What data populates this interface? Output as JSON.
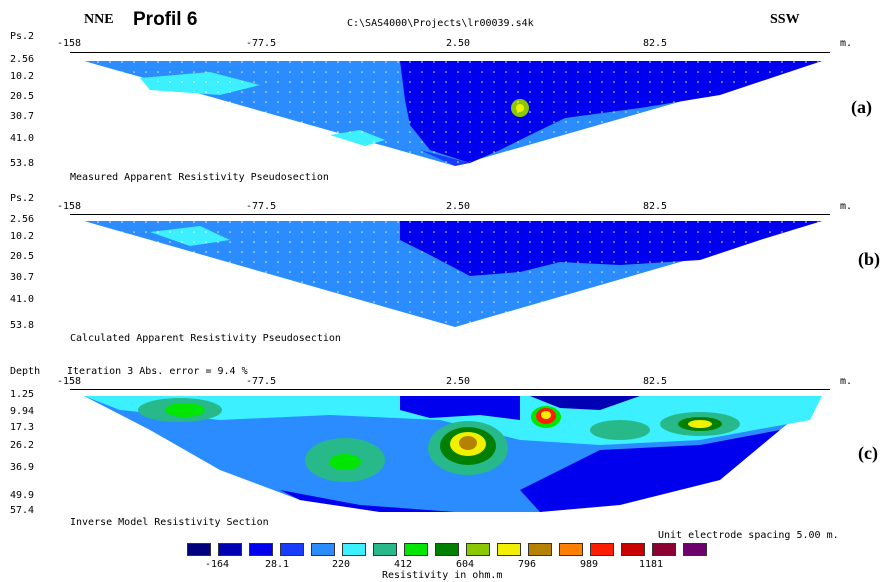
{
  "header": {
    "left_direction": "NNE",
    "title": "Profil 6",
    "file_path": "C:\\SAS4000\\Projects\\lr00039.s4k",
    "right_direction": "SSW"
  },
  "x_axis": {
    "ticks": [
      "-158",
      "-77.5",
      "2.50",
      "82.5"
    ],
    "unit": "m."
  },
  "panels": [
    {
      "y_label": "Ps.2",
      "y_ticks": [
        "2.56",
        "10.2",
        "20.5",
        "30.7",
        "41.0",
        "53.8"
      ],
      "caption": "Measured Apparent Resistivity Pseudosection",
      "tag": "(a)"
    },
    {
      "y_label": "Ps.2",
      "y_ticks": [
        "2.56",
        "10.2",
        "20.5",
        "30.7",
        "41.0",
        "53.8"
      ],
      "caption": "Calculated Apparent Resistivity Pseudosection",
      "tag": "(b)"
    },
    {
      "y_label": "Depth",
      "iteration_text": "Iteration 3 Abs. error = 9.4 %",
      "y_ticks": [
        "1.25",
        "9.94",
        "17.3",
        "26.2",
        "36.9",
        "49.9",
        "57.4"
      ],
      "caption": "Inverse Model Resistivity Section",
      "tag": "(c)"
    }
  ],
  "electrode_spacing": "Unit electrode spacing 5.00 m.",
  "legend": {
    "colors": [
      "#00007f",
      "#0000b4",
      "#0000ee",
      "#1a3cff",
      "#2a8cff",
      "#3cf0ff",
      "#27b98a",
      "#00e600",
      "#007f00",
      "#8cc800",
      "#f0f000",
      "#b48200",
      "#ff7f00",
      "#ff1e00",
      "#c80000",
      "#8c0032",
      "#6e006e"
    ],
    "labels": [
      "-164",
      "28.1",
      "220",
      "412",
      "604",
      "796",
      "989",
      "1181"
    ],
    "unit_label": "Resistivity in ohm.m"
  }
}
